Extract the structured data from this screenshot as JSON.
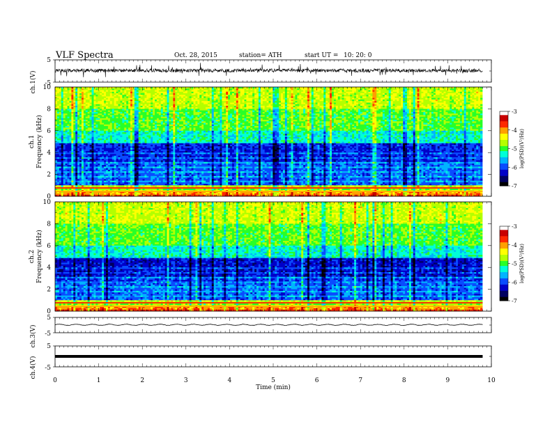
{
  "header": {
    "title": "VLF  Spectra",
    "date": "Oct. 28, 2015",
    "station": "station= ATH",
    "start_label": "start  UT  =",
    "start_time": "10: 20: 0"
  },
  "colors": {
    "waveform": "#000000",
    "colormap": [
      "#000000",
      "#000060",
      "#0000c8",
      "#0a4cff",
      "#00b4ff",
      "#00ffd8",
      "#28ff28",
      "#b4ff00",
      "#ffff00",
      "#ffa000",
      "#ff2800",
      "#c80000",
      "#ffffff"
    ]
  },
  "chart_data": [
    {
      "type": "line",
      "name": "ch1-waveform",
      "ylabel": "ch.1(V)",
      "ylim": [
        -5,
        5
      ],
      "yticks": [
        "5",
        "-5"
      ],
      "description_values": "noisy waveform near +0.2 V with spikes to about +/-2.5 V",
      "x_range_min": [
        0,
        9.8
      ]
    },
    {
      "type": "heatmap",
      "name": "ch1-spectrogram",
      "ylabel": "Frequency (kHz)",
      "channel_label": "ch.1",
      "ylim": [
        0,
        10
      ],
      "yticks": [
        "0",
        "2",
        "4",
        "6",
        "8",
        "10"
      ],
      "colorbar": {
        "label": "log(PSD)(V²/Hz)",
        "ticks": [
          "-3",
          "-4",
          "-5",
          "-6",
          "-7"
        ],
        "range": [
          -7,
          -3
        ]
      }
    },
    {
      "type": "heatmap",
      "name": "ch2-spectrogram",
      "ylabel": "Frequency (kHz)",
      "channel_label": "ch.2",
      "ylim": [
        0,
        10
      ],
      "yticks": [
        "0",
        "2",
        "4",
        "6",
        "8",
        "10"
      ],
      "colorbar": {
        "label": "log(PSD)(V²/Hz)",
        "ticks": [
          "-3",
          "-4",
          "-5",
          "-6",
          "-7"
        ],
        "range": [
          -7,
          -3
        ]
      }
    },
    {
      "type": "line",
      "name": "ch3-waveform",
      "ylabel": "ch.3(V)",
      "ylim": [
        -5,
        5
      ],
      "yticks": [
        "5",
        "-5"
      ],
      "level": 0.2
    },
    {
      "type": "line",
      "name": "ch4-waveform",
      "ylabel": "ch.4(V)",
      "ylim": [
        -5,
        5
      ],
      "yticks": [
        "5",
        "-5"
      ],
      "level": 0
    }
  ],
  "xaxis": {
    "label": "Time  (min)",
    "range": [
      0,
      10
    ],
    "ticks": [
      "0",
      "1",
      "2",
      "3",
      "4",
      "5",
      "6",
      "7",
      "8",
      "9",
      "10"
    ],
    "data_end": 9.8
  }
}
